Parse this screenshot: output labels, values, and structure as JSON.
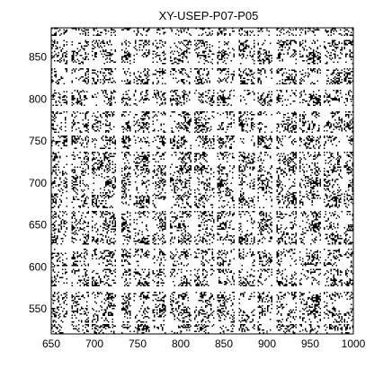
{
  "chart_data": {
    "type": "heatmap",
    "title": "XY-USEP-P07-P05",
    "xlabel": "",
    "ylabel": "",
    "xlim": [
      650,
      1000
    ],
    "ylim": [
      520,
      885
    ],
    "xticks": [
      650,
      700,
      750,
      800,
      850,
      900,
      950,
      1000
    ],
    "yticks": [
      550,
      600,
      650,
      700,
      750,
      800,
      850
    ],
    "colors": {
      "mark": "#000000",
      "background": "#ffffff",
      "axis": "#000000"
    },
    "grid": false,
    "legend": "none",
    "gap_rows": [
      {
        "from": 532,
        "to": 534
      },
      {
        "from": 571,
        "to": 578
      },
      {
        "from": 598,
        "to": 602
      },
      {
        "from": 622,
        "to": 628
      },
      {
        "from": 668,
        "to": 670
      },
      {
        "from": 738,
        "to": 742
      },
      {
        "from": 758,
        "to": 760
      },
      {
        "from": 787,
        "to": 792
      },
      {
        "from": 812,
        "to": 818
      },
      {
        "from": 838,
        "to": 843
      },
      {
        "from": 872,
        "to": 876
      }
    ],
    "gap_columns": [
      {
        "from": 668,
        "to": 672
      },
      {
        "from": 693,
        "to": 696
      },
      {
        "from": 724,
        "to": 730
      },
      {
        "from": 742,
        "to": 745
      },
      {
        "from": 763,
        "to": 766
      },
      {
        "from": 782,
        "to": 786
      },
      {
        "from": 812,
        "to": 815
      },
      {
        "from": 838,
        "to": 842
      },
      {
        "from": 862,
        "to": 866
      },
      {
        "from": 885,
        "to": 888
      },
      {
        "from": 906,
        "to": 910
      },
      {
        "from": 933,
        "to": 936
      },
      {
        "from": 962,
        "to": 965
      },
      {
        "from": 986,
        "to": 989
      }
    ]
  }
}
